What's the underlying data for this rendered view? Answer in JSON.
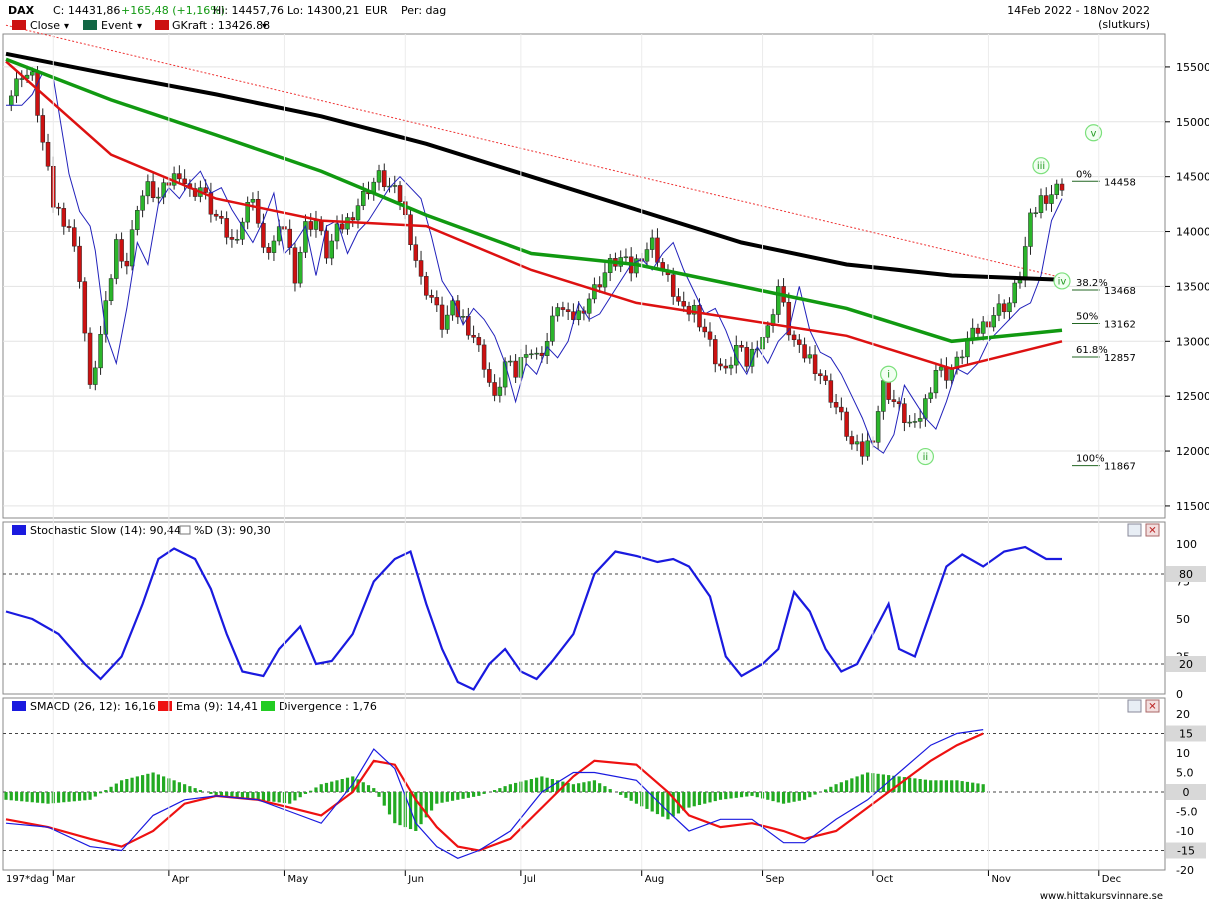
{
  "header": {
    "symbol": "DAX",
    "close_label": "C: 14431,86",
    "change": "+165,48 (+1,16%)",
    "high": "Hi: 14457,76",
    "low": "Lo: 14300,21",
    "currency": "EUR",
    "period": "Per: dag",
    "date_range": "14Feb 2022 - 18Nov 2022",
    "note": "(slutkurs)"
  },
  "legend": {
    "close": "Close",
    "event": "Event",
    "gkraft": "GKraft : 13426.88"
  },
  "stoch_legend": {
    "slow": "Stochastic Slow (14): 90,44",
    "d": "%D (3): 90,30"
  },
  "macd_legend": {
    "smacd": "SMACD (26, 12): 16,16",
    "ema": "Ema (9): 14,41",
    "div": "Divergence : 1,76"
  },
  "colors": {
    "up": "#2bb52b",
    "down": "#cc1111",
    "ma200": "#000000",
    "ma100": "#119911",
    "ma50": "#dd1111",
    "ma20": "#2222bb",
    "stoch": "#1a1adf",
    "macd": "#1a1adf",
    "signal": "#ee1111",
    "hist": "#22aa22",
    "level": "#993300"
  },
  "fib_levels": [
    {
      "pct": "0%",
      "value": "14458"
    },
    {
      "pct": "38.2%",
      "value": "13468"
    },
    {
      "pct": "50%",
      "value": "13162"
    },
    {
      "pct": "61.8%",
      "value": "12857"
    },
    {
      "pct": "100%",
      "value": "11867"
    }
  ],
  "wave_labels": [
    "i",
    "ii",
    "iii",
    "iv",
    "v"
  ],
  "footer": {
    "bars": "197*dag",
    "source": "www.hittakursvinnare.se"
  },
  "stoch_axis": {
    "ticks": [
      "100",
      "75",
      "50",
      "25",
      "0"
    ],
    "boxes": [
      "80",
      "20"
    ]
  },
  "macd_axis": {
    "ticks": [
      "20",
      "10",
      "5.0",
      "-5.0",
      "-10",
      "-20"
    ],
    "boxes": [
      "15",
      "0",
      "-15"
    ]
  },
  "chart_data": [
    {
      "type": "candlestick",
      "title": "DAX",
      "x_months": [
        "Mar",
        "Apr",
        "May",
        "Jun",
        "Jul",
        "Aug",
        "Sep",
        "Oct",
        "Nov",
        "Dec"
      ],
      "y_ticks": [
        11500,
        12000,
        12500,
        13000,
        13500,
        14000,
        14500,
        15000,
        15500
      ],
      "ylim": [
        11390,
        15800
      ],
      "close_path": [
        [
          0,
          15150
        ],
        [
          3,
          15450
        ],
        [
          5,
          15400
        ],
        [
          7,
          14800
        ],
        [
          9,
          14250
        ],
        [
          12,
          14050
        ],
        [
          14,
          13600
        ],
        [
          16,
          12550
        ],
        [
          17,
          12800
        ],
        [
          19,
          13300
        ],
        [
          21,
          13900
        ],
        [
          23,
          13700
        ],
        [
          25,
          14250
        ],
        [
          27,
          14400
        ],
        [
          29,
          14300
        ],
        [
          31,
          14450
        ],
        [
          33,
          14550
        ],
        [
          35,
          14350
        ],
        [
          37,
          14400
        ],
        [
          39,
          14200
        ],
        [
          41,
          14050
        ],
        [
          43,
          13900
        ],
        [
          45,
          14100
        ],
        [
          47,
          14350
        ],
        [
          49,
          13800
        ],
        [
          51,
          13900
        ],
        [
          53,
          14050
        ],
        [
          55,
          13600
        ],
        [
          57,
          14050
        ],
        [
          59,
          14100
        ],
        [
          61,
          13800
        ],
        [
          63,
          14000
        ],
        [
          65,
          14100
        ],
        [
          67,
          14250
        ],
        [
          69,
          14400
        ],
        [
          71,
          14500
        ],
        [
          73,
          14400
        ],
        [
          75,
          14300
        ],
        [
          77,
          13950
        ],
        [
          79,
          13550
        ],
        [
          81,
          13400
        ],
        [
          83,
          13150
        ],
        [
          85,
          13300
        ],
        [
          87,
          13200
        ],
        [
          89,
          13050
        ],
        [
          91,
          12800
        ],
        [
          93,
          12450
        ],
        [
          95,
          12800
        ],
        [
          97,
          12700
        ],
        [
          99,
          12950
        ],
        [
          101,
          12850
        ],
        [
          103,
          13000
        ],
        [
          105,
          13350
        ],
        [
          107,
          13200
        ],
        [
          109,
          13250
        ],
        [
          111,
          13400
        ],
        [
          113,
          13550
        ],
        [
          115,
          13700
        ],
        [
          117,
          13750
        ],
        [
          119,
          13650
        ],
        [
          121,
          13800
        ],
        [
          123,
          13900
        ],
        [
          125,
          13650
        ],
        [
          127,
          13450
        ],
        [
          129,
          13250
        ],
        [
          131,
          13300
        ],
        [
          133,
          13100
        ],
        [
          135,
          12850
        ],
        [
          137,
          12700
        ],
        [
          139,
          12950
        ],
        [
          141,
          12800
        ],
        [
          143,
          13000
        ],
        [
          145,
          13100
        ],
        [
          147,
          13500
        ],
        [
          149,
          13100
        ],
        [
          151,
          12900
        ],
        [
          153,
          12850
        ],
        [
          155,
          12700
        ],
        [
          157,
          12500
        ],
        [
          159,
          12300
        ],
        [
          161,
          12050
        ],
        [
          163,
          11980
        ],
        [
          165,
          12150
        ],
        [
          167,
          12600
        ],
        [
          169,
          12450
        ],
        [
          171,
          12300
        ],
        [
          173,
          12200
        ],
        [
          175,
          12450
        ],
        [
          177,
          12750
        ],
        [
          179,
          12700
        ],
        [
          181,
          12800
        ],
        [
          183,
          13000
        ],
        [
          185,
          13100
        ],
        [
          187,
          13200
        ],
        [
          189,
          13300
        ],
        [
          191,
          13350
        ],
        [
          193,
          13600
        ],
        [
          195,
          14100
        ],
        [
          197,
          14300
        ],
        [
          199,
          14350
        ],
        [
          201,
          14432
        ]
      ],
      "ma200_path": [
        [
          0,
          15620
        ],
        [
          20,
          15430
        ],
        [
          40,
          15250
        ],
        [
          60,
          15050
        ],
        [
          80,
          14800
        ],
        [
          100,
          14500
        ],
        [
          120,
          14200
        ],
        [
          140,
          13900
        ],
        [
          160,
          13700
        ],
        [
          180,
          13600
        ],
        [
          201,
          13560
        ]
      ],
      "ma100_path": [
        [
          0,
          15570
        ],
        [
          20,
          15200
        ],
        [
          40,
          14880
        ],
        [
          60,
          14550
        ],
        [
          80,
          14150
        ],
        [
          100,
          13800
        ],
        [
          120,
          13700
        ],
        [
          140,
          13500
        ],
        [
          160,
          13300
        ],
        [
          180,
          13000
        ],
        [
          201,
          13100
        ]
      ],
      "ma50_path": [
        [
          0,
          15550
        ],
        [
          20,
          14700
        ],
        [
          40,
          14300
        ],
        [
          60,
          14100
        ],
        [
          80,
          14050
        ],
        [
          100,
          13650
        ],
        [
          120,
          13350
        ],
        [
          140,
          13200
        ],
        [
          160,
          13050
        ],
        [
          180,
          12750
        ],
        [
          201,
          13000
        ]
      ],
      "fib_high": 14458,
      "fib_low": 11867
    },
    {
      "type": "line",
      "title": "Stochastic Slow (14)",
      "ylim": [
        0,
        100
      ],
      "levels": [
        80,
        20
      ],
      "values": [
        [
          0,
          55
        ],
        [
          5,
          50
        ],
        [
          10,
          40
        ],
        [
          15,
          20
        ],
        [
          18,
          10
        ],
        [
          22,
          25
        ],
        [
          26,
          60
        ],
        [
          29,
          90
        ],
        [
          32,
          97
        ],
        [
          36,
          90
        ],
        [
          39,
          70
        ],
        [
          42,
          40
        ],
        [
          45,
          15
        ],
        [
          49,
          12
        ],
        [
          52,
          30
        ],
        [
          56,
          45
        ],
        [
          59,
          20
        ],
        [
          62,
          22
        ],
        [
          66,
          40
        ],
        [
          70,
          75
        ],
        [
          74,
          90
        ],
        [
          77,
          95
        ],
        [
          80,
          60
        ],
        [
          83,
          30
        ],
        [
          86,
          8
        ],
        [
          89,
          3
        ],
        [
          92,
          20
        ],
        [
          95,
          30
        ],
        [
          98,
          15
        ],
        [
          101,
          10
        ],
        [
          104,
          22
        ],
        [
          108,
          40
        ],
        [
          112,
          80
        ],
        [
          116,
          95
        ],
        [
          120,
          92
        ],
        [
          124,
          88
        ],
        [
          127,
          90
        ],
        [
          130,
          85
        ],
        [
          134,
          65
        ],
        [
          137,
          25
        ],
        [
          140,
          12
        ],
        [
          144,
          20
        ],
        [
          147,
          30
        ],
        [
          150,
          68
        ],
        [
          153,
          55
        ],
        [
          156,
          30
        ],
        [
          159,
          15
        ],
        [
          162,
          20
        ],
        [
          165,
          40
        ],
        [
          168,
          60
        ],
        [
          170,
          30
        ],
        [
          173,
          25
        ],
        [
          176,
          55
        ],
        [
          179,
          85
        ],
        [
          182,
          93
        ],
        [
          186,
          85
        ],
        [
          190,
          95
        ],
        [
          194,
          98
        ],
        [
          198,
          90
        ],
        [
          201,
          90
        ]
      ]
    },
    {
      "type": "line",
      "title": "SMACD (26, 12)",
      "ylim": [
        -20,
        20
      ],
      "levels": [
        15,
        0,
        -15
      ],
      "macd": [
        [
          0,
          -8
        ],
        [
          8,
          -9
        ],
        [
          16,
          -14
        ],
        [
          22,
          -15
        ],
        [
          28,
          -6
        ],
        [
          34,
          -2
        ],
        [
          40,
          -1
        ],
        [
          48,
          -2
        ],
        [
          54,
          -5
        ],
        [
          60,
          -8
        ],
        [
          66,
          2
        ],
        [
          70,
          11
        ],
        [
          74,
          6
        ],
        [
          78,
          -8
        ],
        [
          82,
          -14
        ],
        [
          86,
          -17
        ],
        [
          90,
          -15
        ],
        [
          96,
          -10
        ],
        [
          102,
          0
        ],
        [
          108,
          5
        ],
        [
          112,
          5
        ],
        [
          120,
          3
        ],
        [
          126,
          -5
        ],
        [
          130,
          -10
        ],
        [
          136,
          -7
        ],
        [
          142,
          -7
        ],
        [
          148,
          -13
        ],
        [
          152,
          -13
        ],
        [
          158,
          -7
        ],
        [
          164,
          -2
        ],
        [
          170,
          5
        ],
        [
          176,
          12
        ],
        [
          181,
          15
        ],
        [
          186,
          16
        ]
      ],
      "signal": [
        [
          0,
          -7
        ],
        [
          8,
          -9
        ],
        [
          16,
          -12
        ],
        [
          22,
          -14
        ],
        [
          28,
          -10
        ],
        [
          34,
          -3
        ],
        [
          40,
          -1
        ],
        [
          48,
          -2
        ],
        [
          54,
          -4
        ],
        [
          60,
          -6
        ],
        [
          66,
          0
        ],
        [
          70,
          8
        ],
        [
          74,
          7
        ],
        [
          78,
          -2
        ],
        [
          82,
          -9
        ],
        [
          86,
          -14
        ],
        [
          90,
          -15
        ],
        [
          96,
          -12
        ],
        [
          102,
          -4
        ],
        [
          108,
          4
        ],
        [
          112,
          8
        ],
        [
          120,
          7
        ],
        [
          126,
          0
        ],
        [
          130,
          -6
        ],
        [
          136,
          -9
        ],
        [
          142,
          -8
        ],
        [
          148,
          -10
        ],
        [
          152,
          -12
        ],
        [
          158,
          -10
        ],
        [
          164,
          -4
        ],
        [
          170,
          2
        ],
        [
          176,
          8
        ],
        [
          181,
          12
        ],
        [
          186,
          15
        ]
      ],
      "hist": [
        [
          0,
          -2
        ],
        [
          8,
          -3
        ],
        [
          16,
          -2
        ],
        [
          22,
          3
        ],
        [
          28,
          5
        ],
        [
          34,
          2
        ],
        [
          40,
          -1
        ],
        [
          48,
          -2
        ],
        [
          54,
          -3
        ],
        [
          60,
          2
        ],
        [
          66,
          4
        ],
        [
          70,
          1
        ],
        [
          74,
          -8
        ],
        [
          78,
          -10
        ],
        [
          82,
          -3
        ],
        [
          86,
          -2
        ],
        [
          90,
          -1
        ],
        [
          96,
          2
        ],
        [
          102,
          4
        ],
        [
          108,
          2
        ],
        [
          112,
          3
        ],
        [
          120,
          -3
        ],
        [
          126,
          -7
        ],
        [
          130,
          -4
        ],
        [
          136,
          -2
        ],
        [
          142,
          -1
        ],
        [
          148,
          -3
        ],
        [
          152,
          -2
        ],
        [
          158,
          2
        ],
        [
          164,
          5
        ],
        [
          170,
          4
        ],
        [
          176,
          3
        ],
        [
          181,
          3
        ],
        [
          186,
          2
        ]
      ]
    }
  ]
}
